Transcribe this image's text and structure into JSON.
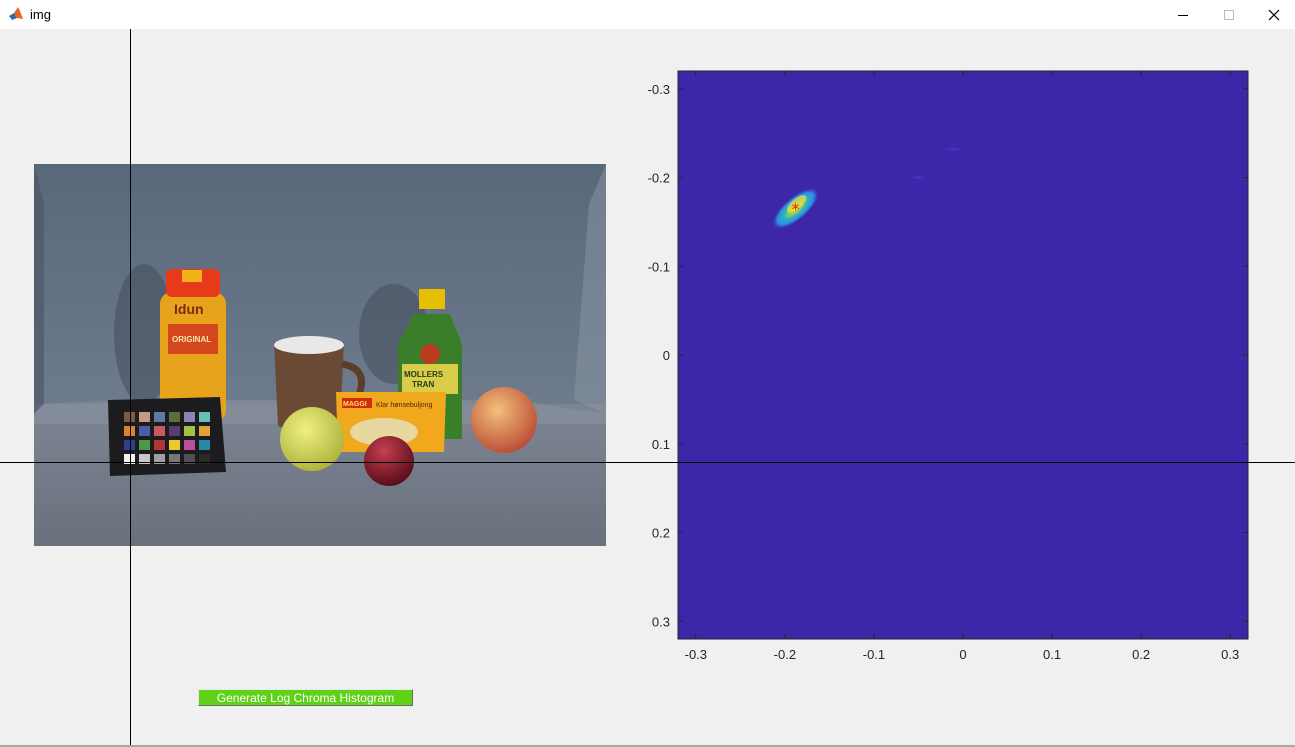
{
  "window": {
    "title": "img",
    "icon": "matlab-logo-icon",
    "controls": [
      "minimize-icon",
      "maximize-icon",
      "close-icon"
    ]
  },
  "photo": {
    "description_icon": "scene-photo",
    "product_labels": [
      "Idun",
      "ORIGINAL",
      "MOLLERS TRAN",
      "MAGGI",
      "Klar hønsebuljong"
    ]
  },
  "generate_button": {
    "label": "Generate Log Chroma Histogram",
    "color": "#5fd117"
  },
  "plot": {
    "background_color": "#3d26a8",
    "x_ticks": [
      "-0.3",
      "-0.2",
      "-0.1",
      "0",
      "0.1",
      "0.2",
      "0.3"
    ],
    "y_ticks": [
      "-0.3",
      "-0.2",
      "-0.1",
      "0",
      "0.1",
      "0.2",
      "0.3"
    ],
    "x_range": [
      -0.32,
      0.32
    ],
    "y_range": [
      -0.32,
      0.32
    ],
    "y_direction": "reversed",
    "peak": {
      "u": -0.188,
      "v": -0.165
    }
  },
  "chart_data": {
    "type": "heatmap",
    "title": "",
    "xlabel": "",
    "ylabel": "",
    "xlim": [
      -0.32,
      0.32
    ],
    "ylim": [
      0.32,
      -0.32
    ],
    "colormap": "parula",
    "hotspots": [
      {
        "u": -0.188,
        "v": -0.165,
        "intensity": 1.0
      },
      {
        "u": -0.05,
        "v": -0.2,
        "intensity": 0.05
      },
      {
        "u": -0.01,
        "v": -0.232,
        "intensity": 0.05
      }
    ],
    "marker": {
      "u": -0.188,
      "v": -0.165,
      "symbol": "*",
      "color": "#d62020"
    }
  }
}
